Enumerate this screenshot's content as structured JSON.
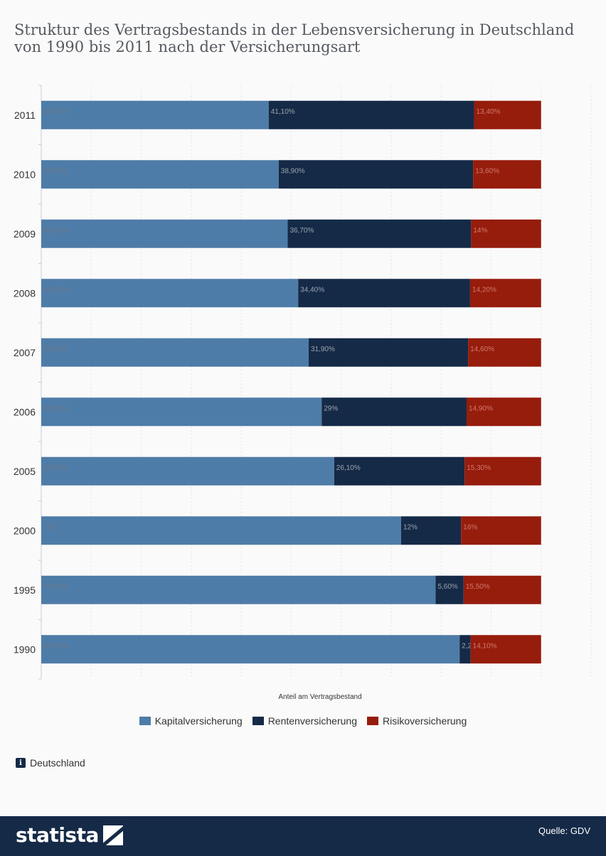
{
  "title": "Struktur des Vertragsbestands in der Lebensversicherung in Deutschland von 1990 bis 2011 nach der Versicherungsart",
  "region": "Deutschland",
  "source": "Quelle: GDV",
  "logo_text": "statista",
  "colors": {
    "kapital": "#4e7ca8",
    "renten": "#152a47",
    "risiko": "#961c0c",
    "footer": "#152a47"
  },
  "chart_data": {
    "type": "bar",
    "orientation": "horizontal",
    "stacked": true,
    "categories": [
      "2011",
      "2010",
      "2009",
      "2008",
      "2007",
      "2006",
      "2005",
      "2000",
      "1995",
      "1990"
    ],
    "series": [
      {
        "name": "Kapitalversicherung",
        "values": [
          45.5,
          47.5,
          49.3,
          51.4,
          53.5,
          56.1,
          58.6,
          72,
          78.9,
          83.7
        ],
        "labels": [
          "45,50%",
          "47,50%",
          "49,30%",
          "51,40%",
          "53,50%",
          "56,10%",
          "58,60%",
          "72%",
          "78,90%",
          "83,70%"
        ]
      },
      {
        "name": "Rentenversicherung",
        "values": [
          41.1,
          38.9,
          36.7,
          34.4,
          31.9,
          29,
          26.1,
          12,
          5.6,
          2.2
        ],
        "labels": [
          "41,10%",
          "38,90%",
          "36,70%",
          "34,40%",
          "31,90%",
          "29%",
          "26,10%",
          "12%",
          "5,60%",
          "2,20%"
        ]
      },
      {
        "name": "Risikoversicherung",
        "values": [
          13.4,
          13.6,
          14,
          14.2,
          14.6,
          14.9,
          15.3,
          16,
          15.5,
          14.1
        ],
        "labels": [
          "13,40%",
          "13,60%",
          "14%",
          "14,20%",
          "14,60%",
          "14,90%",
          "15,30%",
          "16%",
          "15,50%",
          "14,10%"
        ]
      }
    ],
    "xlabel": "Anteil am Vertragsbestand",
    "xlim": [
      0,
      110
    ],
    "grid": true,
    "legend": "bottom"
  }
}
